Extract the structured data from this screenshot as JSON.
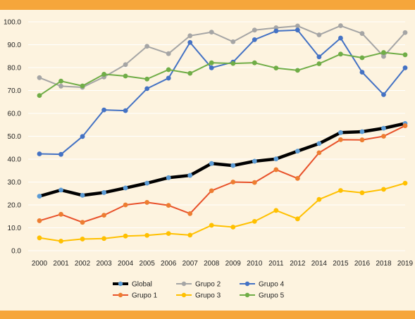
{
  "colors": {
    "background": "#fdf3df",
    "band": "#f6a63b",
    "grid": "#ffffff"
  },
  "chart_data": {
    "type": "line",
    "title": "",
    "xlabel": "",
    "ylabel": "",
    "categories": [
      "2000",
      "2001",
      "2002",
      "2003",
      "2004",
      "2005",
      "2006",
      "2007",
      "2008",
      "2009",
      "2010",
      "2011",
      "2012",
      "2014",
      "2015",
      "2016",
      "2018",
      "2019"
    ],
    "ylim": [
      0,
      100
    ],
    "yticks": [
      "0.0",
      "10.0",
      "20.0",
      "30.0",
      "40.0",
      "50.0",
      "60.0",
      "70.0",
      "80.0",
      "90.0",
      "100.0"
    ],
    "grid": true,
    "legend_position": "bottom",
    "series": [
      {
        "name": "Global",
        "color": "#000000",
        "marker": "#5b9bd5",
        "bold": true,
        "values": [
          23.8,
          26.5,
          24.2,
          25.4,
          27.4,
          29.5,
          31.9,
          32.9,
          38.1,
          37.2,
          39.1,
          40.1,
          43.5,
          46.8,
          51.6,
          52.0,
          53.5,
          55.6
        ]
      },
      {
        "name": "Grupo 1",
        "color": "#e8512a",
        "marker": "#ed7d31",
        "values": [
          13.1,
          15.9,
          12.4,
          15.5,
          20.0,
          21.1,
          19.8,
          16.2,
          26.2,
          30.0,
          29.8,
          35.4,
          31.6,
          42.8,
          48.5,
          48.4,
          50.0,
          54.6
        ]
      },
      {
        "name": "Grupo 2",
        "color": "#a5a5a5",
        "marker": "#a5a5a5",
        "values": [
          75.6,
          71.9,
          71.4,
          75.9,
          81.3,
          89.3,
          86.1,
          93.9,
          95.5,
          91.3,
          96.4,
          97.4,
          98.2,
          94.3,
          98.3,
          94.9,
          84.9,
          95.3
        ]
      },
      {
        "name": "Grupo 3",
        "color": "#ffc000",
        "marker": "#ffc000",
        "values": [
          5.6,
          4.2,
          5.1,
          5.3,
          6.4,
          6.7,
          7.5,
          6.8,
          11.1,
          10.3,
          12.8,
          17.6,
          13.9,
          22.4,
          26.3,
          25.3,
          26.8,
          29.5
        ]
      },
      {
        "name": "Grupo 4",
        "color": "#4472c4",
        "marker": "#4472c4",
        "values": [
          42.3,
          42.1,
          49.9,
          61.5,
          61.2,
          70.8,
          75.4,
          91.0,
          79.9,
          82.4,
          92.2,
          96.0,
          96.4,
          84.7,
          92.9,
          78.0,
          68.2,
          79.9
        ]
      },
      {
        "name": "Grupo 5",
        "color": "#70ad47",
        "marker": "#70ad47",
        "values": [
          67.8,
          74.1,
          72.0,
          77.1,
          76.3,
          75.0,
          79.1,
          77.5,
          82.1,
          81.8,
          82.1,
          79.8,
          78.8,
          81.7,
          85.9,
          84.3,
          86.6,
          85.6
        ]
      }
    ],
    "legend": [
      {
        "label": "Global",
        "series": 0
      },
      {
        "label": "Grupo 1",
        "series": 1
      },
      {
        "label": "Grupo 2",
        "series": 2
      },
      {
        "label": "Grupo 3",
        "series": 3
      },
      {
        "label": "Grupo 4",
        "series": 4
      },
      {
        "label": "Grupo 5",
        "series": 5
      }
    ]
  }
}
